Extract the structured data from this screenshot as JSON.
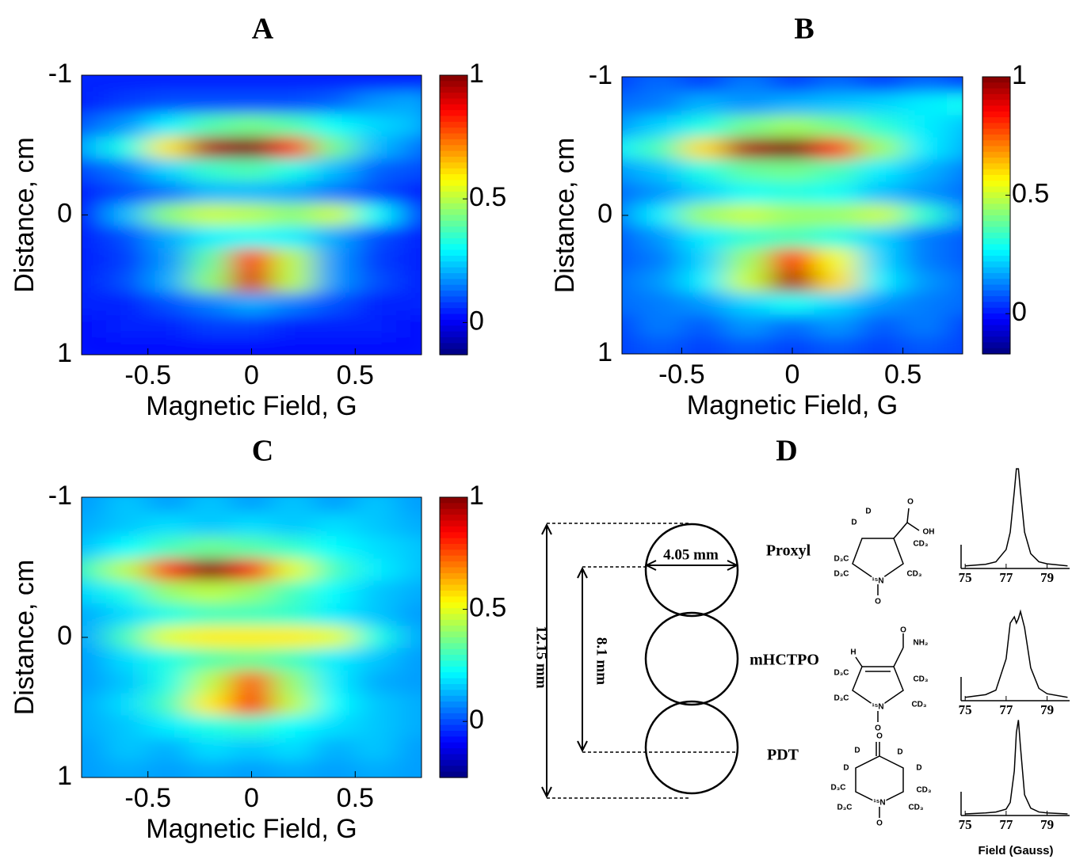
{
  "chart_data": [
    {
      "type": "heatmap",
      "title": "A",
      "xlabel": "Magnetic Field, G",
      "ylabel": "Distance, cm",
      "xlim": [
        -0.82,
        0.82
      ],
      "xticks": [
        -0.5,
        0,
        0.5
      ],
      "ylim": [
        -1,
        1
      ],
      "yticks": [
        -1,
        0,
        1
      ],
      "y_reversed": true,
      "clim": [
        -0.13,
        1
      ],
      "cticks": [
        0,
        0.5,
        1
      ],
      "colormap": "jet",
      "x": [
        -0.8,
        -0.6,
        -0.4,
        -0.2,
        0,
        0.2,
        0.4,
        0.6,
        0.8
      ],
      "y": [
        -0.96,
        -0.8,
        -0.64,
        -0.48,
        -0.32,
        -0.16,
        0,
        0.16,
        0.32,
        0.48,
        0.64,
        0.8,
        0.96
      ],
      "z": [
        [
          0.05,
          0.05,
          0.05,
          0.05,
          0.05,
          0.05,
          0.05,
          0.05,
          0.05
        ],
        [
          0.05,
          0.08,
          0.1,
          0.1,
          0.1,
          0.1,
          0.12,
          0.18,
          0.2
        ],
        [
          0.12,
          0.18,
          0.28,
          0.38,
          0.42,
          0.38,
          0.3,
          0.25,
          0.22
        ],
        [
          0.22,
          0.32,
          0.6,
          0.95,
          1,
          0.8,
          0.42,
          0.22,
          0.15
        ],
        [
          0.1,
          0.15,
          0.25,
          0.35,
          0.38,
          0.32,
          0.22,
          0.12,
          0.1
        ],
        [
          0.05,
          0.1,
          0.15,
          0.22,
          0.22,
          0.2,
          0.15,
          0.1,
          0.05
        ],
        [
          0.05,
          0.22,
          0.45,
          0.52,
          0.5,
          0.45,
          0.52,
          0.3,
          0.1
        ],
        [
          0.05,
          0.1,
          0.2,
          0.28,
          0.3,
          0.28,
          0.2,
          0.1,
          0.05
        ],
        [
          0.05,
          0.08,
          0.18,
          0.4,
          0.85,
          0.5,
          0.18,
          0.08,
          0.05
        ],
        [
          0.05,
          0.1,
          0.2,
          0.45,
          0.9,
          0.5,
          0.18,
          0.1,
          0.05
        ],
        [
          0.05,
          0.05,
          0.1,
          0.15,
          0.2,
          0.15,
          0.1,
          0.05,
          0.05
        ],
        [
          0.03,
          0.05,
          0.05,
          0.08,
          0.08,
          0.05,
          0.05,
          0.05,
          0.03
        ],
        [
          0.02,
          0.03,
          0.03,
          0.03,
          0.03,
          0.03,
          0.03,
          0.03,
          0.02
        ]
      ]
    },
    {
      "type": "heatmap",
      "title": "B",
      "xlabel": "Magnetic Field, G",
      "ylabel": "Distance, cm",
      "xlim": [
        -0.77,
        0.77
      ],
      "xticks": [
        -0.5,
        0,
        0.5
      ],
      "ylim": [
        -1,
        1
      ],
      "yticks": [
        -1,
        0,
        1
      ],
      "y_reversed": true,
      "clim": [
        -0.17,
        1
      ],
      "cticks": [
        0,
        0.5,
        1
      ],
      "colormap": "jet",
      "x": [
        -0.8,
        -0.6,
        -0.4,
        -0.2,
        0,
        0.2,
        0.4,
        0.6,
        0.8
      ],
      "y": [
        -0.96,
        -0.8,
        -0.64,
        -0.48,
        -0.32,
        -0.16,
        0,
        0.16,
        0.32,
        0.48,
        0.64,
        0.8,
        0.96
      ],
      "z": [
        [
          0.05,
          0.1,
          0.05,
          0.12,
          0.05,
          0.1,
          0.05,
          0.1,
          0.05
        ],
        [
          0.1,
          0.12,
          0.18,
          0.15,
          0.18,
          0.2,
          0.22,
          0.25,
          0.28
        ],
        [
          0.15,
          0.22,
          0.3,
          0.4,
          0.45,
          0.4,
          0.32,
          0.25,
          0.2
        ],
        [
          0.25,
          0.35,
          0.6,
          0.95,
          1,
          0.8,
          0.45,
          0.25,
          0.18
        ],
        [
          0.15,
          0.2,
          0.3,
          0.38,
          0.4,
          0.35,
          0.25,
          0.18,
          0.12
        ],
        [
          0.1,
          0.15,
          0.22,
          0.28,
          0.3,
          0.28,
          0.2,
          0.15,
          0.1
        ],
        [
          0.12,
          0.25,
          0.45,
          0.5,
          0.45,
          0.45,
          0.5,
          0.32,
          0.15
        ],
        [
          0.08,
          0.15,
          0.25,
          0.32,
          0.35,
          0.3,
          0.22,
          0.12,
          0.08
        ],
        [
          0.08,
          0.12,
          0.22,
          0.45,
          0.85,
          0.55,
          0.22,
          0.12,
          0.08
        ],
        [
          0.1,
          0.15,
          0.25,
          0.5,
          0.95,
          0.6,
          0.25,
          0.15,
          0.1
        ],
        [
          0.1,
          0.12,
          0.15,
          0.22,
          0.28,
          0.22,
          0.15,
          0.12,
          0.1
        ],
        [
          0.05,
          0.12,
          0.08,
          0.15,
          0.1,
          0.15,
          0.08,
          0.12,
          0.05
        ],
        [
          0.05,
          0.08,
          0.05,
          0.08,
          0.05,
          0.08,
          0.05,
          0.08,
          0.05
        ]
      ]
    },
    {
      "type": "heatmap",
      "title": "C",
      "xlabel": "Magnetic Field, G",
      "ylabel": "Distance, cm",
      "xlim": [
        -0.82,
        0.82
      ],
      "xticks": [
        -0.5,
        0,
        0.5
      ],
      "ylim": [
        -1,
        1
      ],
      "yticks": [
        -1,
        0,
        1
      ],
      "y_reversed": true,
      "clim": [
        -0.25,
        1
      ],
      "cticks": [
        0,
        0.5,
        1
      ],
      "colormap": "jet",
      "x": [
        -0.8,
        -0.6,
        -0.4,
        -0.2,
        0,
        0.2,
        0.4,
        0.6,
        0.8
      ],
      "y": [
        -0.96,
        -0.8,
        -0.64,
        -0.48,
        -0.32,
        -0.16,
        0,
        0.16,
        0.32,
        0.48,
        0.64,
        0.8,
        0.96
      ],
      "z": [
        [
          0.1,
          0.15,
          0.1,
          0.15,
          0.1,
          0.15,
          0.1,
          0.15,
          0.1
        ],
        [
          0.12,
          0.15,
          0.18,
          0.15,
          0.18,
          0.15,
          0.18,
          0.15,
          0.12
        ],
        [
          0.15,
          0.22,
          0.3,
          0.35,
          0.32,
          0.28,
          0.22,
          0.18,
          0.15
        ],
        [
          0.3,
          0.45,
          0.8,
          1,
          0.85,
          0.5,
          0.3,
          0.2,
          0.15
        ],
        [
          0.18,
          0.25,
          0.4,
          0.45,
          0.4,
          0.3,
          0.22,
          0.15,
          0.12
        ],
        [
          0.12,
          0.18,
          0.25,
          0.3,
          0.3,
          0.28,
          0.2,
          0.15,
          0.1
        ],
        [
          0.12,
          0.3,
          0.5,
          0.55,
          0.55,
          0.55,
          0.5,
          0.25,
          0.12
        ],
        [
          0.1,
          0.18,
          0.25,
          0.32,
          0.35,
          0.3,
          0.2,
          0.15,
          0.1
        ],
        [
          0.1,
          0.15,
          0.25,
          0.45,
          0.75,
          0.4,
          0.2,
          0.12,
          0.1
        ],
        [
          0.12,
          0.18,
          0.3,
          0.55,
          0.85,
          0.45,
          0.22,
          0.15,
          0.12
        ],
        [
          0.12,
          0.15,
          0.2,
          0.25,
          0.28,
          0.22,
          0.18,
          0.15,
          0.12
        ],
        [
          0.1,
          0.15,
          0.12,
          0.18,
          0.15,
          0.18,
          0.12,
          0.15,
          0.1
        ],
        [
          0.1,
          0.12,
          0.1,
          0.12,
          0.1,
          0.12,
          0.1,
          0.12,
          0.1
        ]
      ]
    }
  ],
  "diagram": {
    "title": "D",
    "dimensions": {
      "width": "4.05 mm",
      "total": "12.15 mm",
      "pitch": "8.1 mm"
    },
    "molecules": [
      {
        "name": "Proxyl",
        "atoms": [
          "D",
          "D",
          "D₃C",
          "D₃C",
          "¹⁵N",
          "O",
          "O",
          "OH",
          "CD₃",
          "CD₃"
        ]
      },
      {
        "name": "mHCTPO",
        "atoms": [
          "H",
          "O",
          "NH₂",
          "D₃C",
          "D₃C",
          "¹⁵N",
          "CD₃",
          "CD₃",
          "O"
        ]
      },
      {
        "name": "PDT",
        "atoms": [
          "O",
          "D",
          "D",
          "D",
          "D",
          "D₃C",
          "D₃C",
          "¹⁵N",
          "CD₃",
          "CD₃",
          "O"
        ]
      }
    ],
    "spectra": {
      "xlabel": "Field (Gauss)",
      "xlim": [
        74.8,
        80.1
      ],
      "xticks": [
        75,
        77,
        79
      ],
      "ylim": [
        0,
        1
      ],
      "x": [
        75,
        76,
        76.5,
        77,
        77.2,
        77.4,
        77.5,
        77.6,
        77.7,
        77.9,
        78.2,
        78.6,
        79,
        80
      ],
      "series": [
        {
          "values": [
            0.01,
            0.025,
            0.05,
            0.17,
            0.34,
            0.74,
            0.96,
            0.96,
            0.74,
            0.34,
            0.13,
            0.05,
            0.03,
            0.01
          ]
        },
        {
          "values": [
            0.02,
            0.05,
            0.1,
            0.45,
            0.85,
            0.92,
            0.85,
            0.9,
            0.98,
            0.8,
            0.35,
            0.12,
            0.06,
            0.02
          ]
        },
        {
          "values": [
            0,
            0.01,
            0.02,
            0.05,
            0.12,
            0.45,
            0.85,
            0.98,
            0.7,
            0.2,
            0.06,
            0.02,
            0.01,
            0
          ]
        }
      ]
    }
  }
}
